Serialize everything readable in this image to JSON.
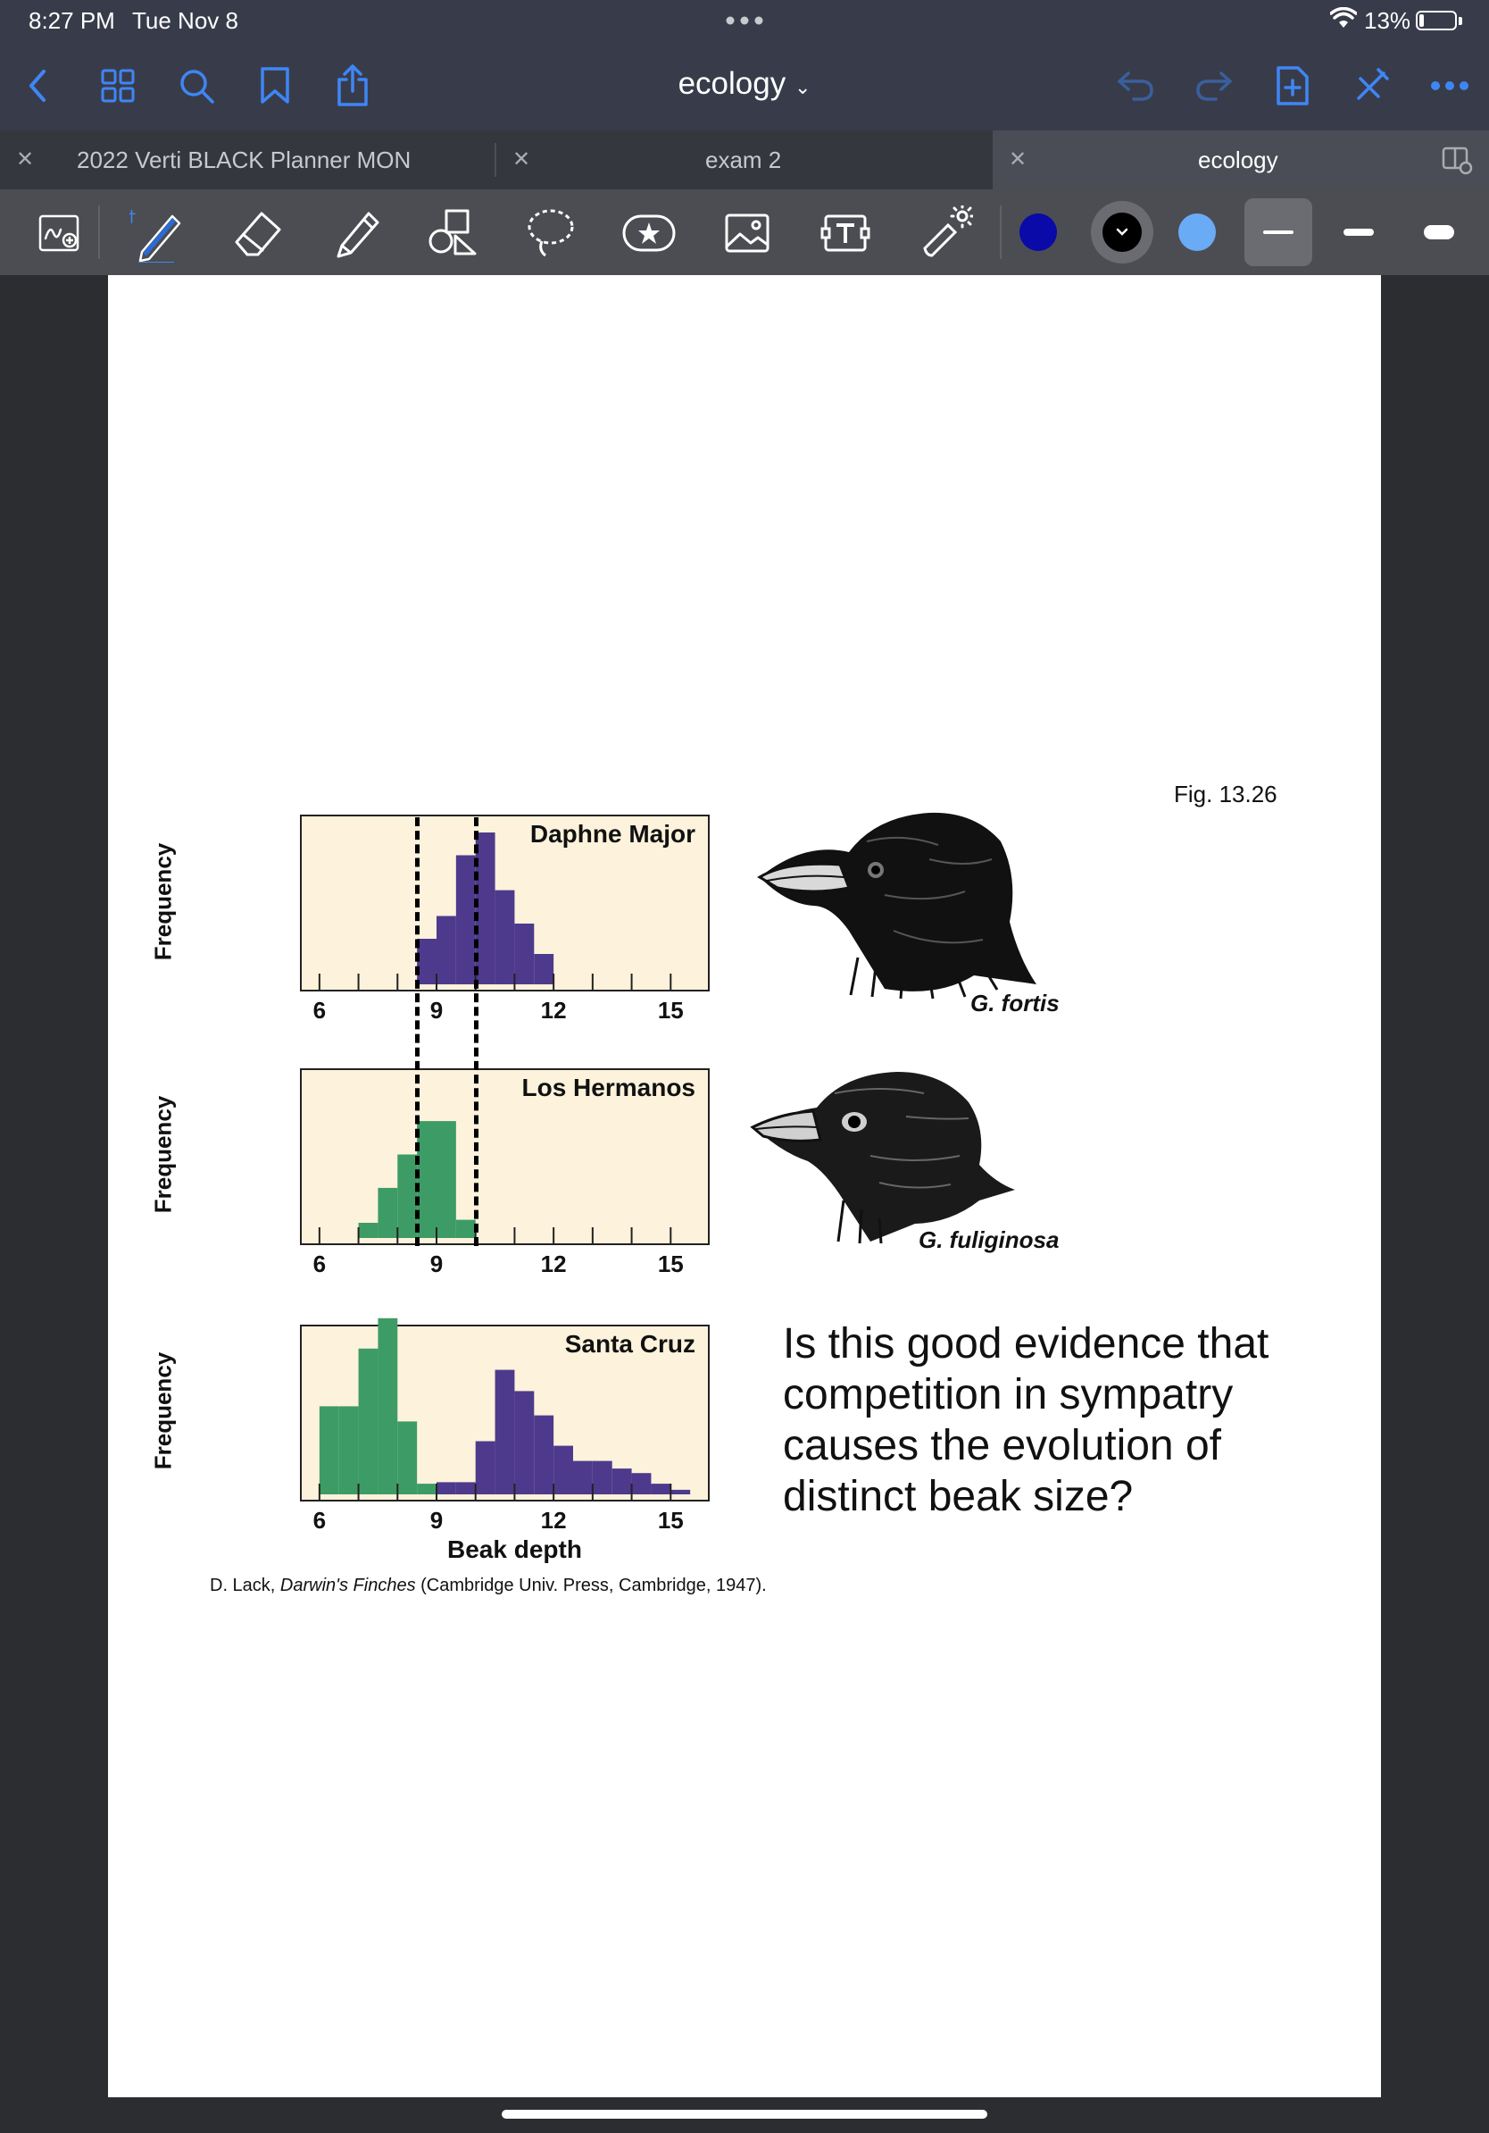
{
  "status": {
    "time": "8:27 PM",
    "date": "Tue Nov 8",
    "battery_pct": "13%",
    "battery_level": 0.13
  },
  "nav": {
    "title": "ecology",
    "icons": [
      "back-icon",
      "thumbnails-icon",
      "search-icon",
      "bookmark-icon",
      "share-icon",
      "undo-icon",
      "redo-icon",
      "add-page-icon",
      "close-pen-icon",
      "more-icon"
    ]
  },
  "tabs": [
    {
      "label": "2022 Verti BLACK Planner MON",
      "active": false
    },
    {
      "label": "exam 2",
      "active": false
    },
    {
      "label": "ecology",
      "active": true
    }
  ],
  "toolbar": {
    "tools": [
      "zoom-window-icon",
      "pen-icon",
      "eraser-icon",
      "highlighter-icon",
      "shapes-icon",
      "lasso-icon",
      "sticker-icon",
      "image-icon",
      "text-icon",
      "laser-pointer-icon"
    ],
    "selected_tool": "pen",
    "colors": [
      "#0a0aa8",
      "#000000",
      "#6aabf5"
    ],
    "selected_size": "thin"
  },
  "document": {
    "fig_label": "Fig. 13.26",
    "ylabel": "Frequency",
    "xlabel": "Beak depth",
    "tick_labels": [
      "6",
      "9",
      "12",
      "15"
    ],
    "birds": [
      {
        "label": "G. fortis"
      },
      {
        "label": "G. fuliginosa"
      }
    ],
    "question": "Is this good evidence that competition in sympatry causes the evolution of distinct beak size?",
    "citation_prefix": "D. Lack, ",
    "citation_title": "Darwin's Finches",
    "citation_suffix": " (Cambridge Univ. Press, Cambridge, 1947).",
    "dashed_lines_x": [
      8.5,
      10.0
    ]
  },
  "chart_data": [
    {
      "type": "bar",
      "title": "Daphne Major",
      "xlabel": "",
      "ylabel": "Frequency",
      "xlim": [
        5.5,
        16.0
      ],
      "xticks": [
        6,
        9,
        12,
        15
      ],
      "bin_width": 0.5,
      "series": [
        {
          "name": "",
          "color": "#4e3a8c",
          "bins": [
            [
              8.5,
              0.3
            ],
            [
              9.0,
              0.45
            ],
            [
              9.5,
              0.85
            ],
            [
              10.0,
              1.0
            ],
            [
              10.5,
              0.62
            ],
            [
              11.0,
              0.4
            ],
            [
              11.5,
              0.2
            ]
          ]
        }
      ]
    },
    {
      "type": "bar",
      "title": "Los Hermanos",
      "xlabel": "",
      "ylabel": "Frequency",
      "xlim": [
        5.5,
        16.0
      ],
      "xticks": [
        6,
        9,
        12,
        15
      ],
      "bin_width": 0.5,
      "series": [
        {
          "name": "",
          "color": "#3d9c66",
          "bins": [
            [
              7.0,
              0.1
            ],
            [
              7.5,
              0.33
            ],
            [
              8.0,
              0.55
            ],
            [
              8.5,
              0.77
            ],
            [
              9.0,
              0.77
            ],
            [
              9.5,
              0.12
            ]
          ]
        }
      ]
    },
    {
      "type": "bar",
      "title": "Santa Cruz",
      "xlabel": "Beak depth",
      "ylabel": "Frequency",
      "xlim": [
        5.5,
        16.0
      ],
      "xticks": [
        6,
        9,
        12,
        15
      ],
      "bin_width": 0.5,
      "series": [
        {
          "name": "",
          "color": "#3d9c66",
          "bins": [
            [
              6.0,
              0.58
            ],
            [
              6.5,
              0.58
            ],
            [
              7.0,
              0.96
            ],
            [
              7.5,
              1.16
            ],
            [
              8.0,
              0.48
            ],
            [
              8.5,
              0.07
            ],
            [
              9.0,
              0.0
            ]
          ]
        },
        {
          "name": "",
          "color": "#4e3a8c",
          "bins": [
            [
              9.0,
              0.08
            ],
            [
              9.5,
              0.08
            ],
            [
              10.0,
              0.35
            ],
            [
              10.5,
              0.82
            ],
            [
              11.0,
              0.68
            ],
            [
              11.5,
              0.52
            ],
            [
              12.0,
              0.32
            ],
            [
              12.5,
              0.22
            ],
            [
              13.0,
              0.22
            ],
            [
              13.5,
              0.17
            ],
            [
              14.0,
              0.14
            ],
            [
              14.5,
              0.07
            ],
            [
              15.0,
              0.03
            ]
          ]
        }
      ]
    }
  ]
}
